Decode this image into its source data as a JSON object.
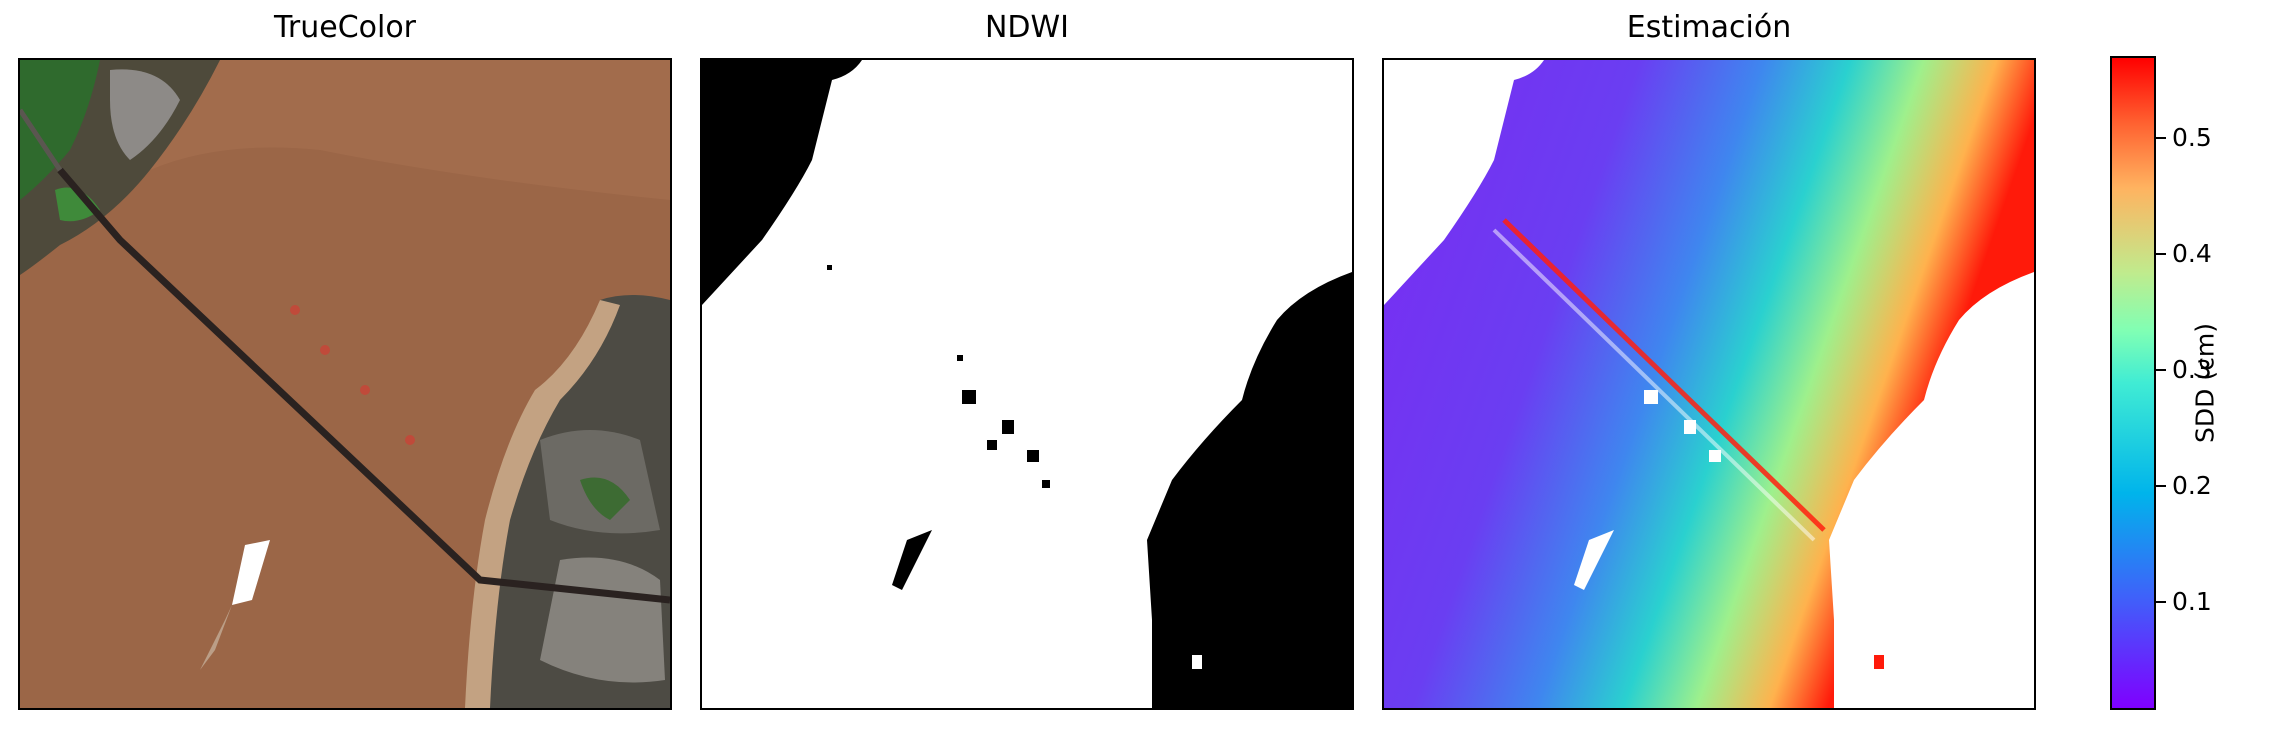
{
  "panels": [
    {
      "title": "TrueColor"
    },
    {
      "title": "NDWI"
    },
    {
      "title": "Estimación"
    }
  ],
  "colorbar": {
    "label": "SDD (cm)",
    "vmin": 0.01,
    "vmax": 0.57,
    "colormap": "rainbow",
    "ticks": [
      "0.1",
      "0.2",
      "0.3",
      "0.4",
      "0.5"
    ]
  },
  "chart_data": {
    "type": "heatmap",
    "panels": [
      "TrueColor",
      "NDWI",
      "Estimación"
    ],
    "colorbar_label": "SDD (cm)",
    "colorbar_range": [
      0.01,
      0.57
    ],
    "colorbar_ticks": [
      0.1,
      0.2,
      0.3,
      0.4,
      0.5
    ]
  },
  "colors": {
    "river": "#9a6446",
    "bank": "#b99a7e",
    "land_dark": "#4b4a3c",
    "vegetation": "#2f6b2e",
    "ndwi_water": "#ffffff",
    "ndwi_land": "#000000",
    "low_sdd": "#7a2bf3",
    "high_sdd": "#ff1a0a"
  }
}
